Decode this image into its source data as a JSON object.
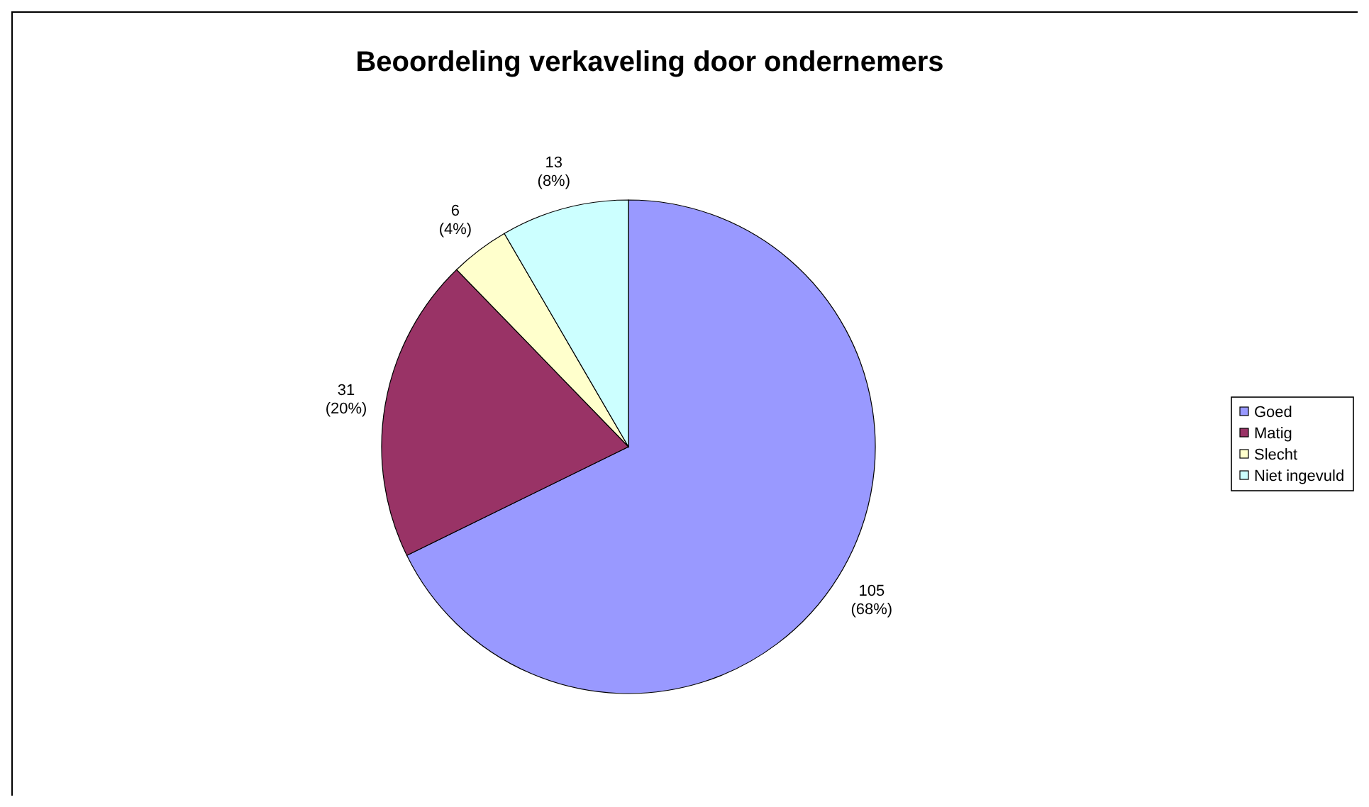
{
  "chart_data": {
    "type": "pie",
    "title": "Beoordeling verkaveling door ondernemers",
    "categories": [
      "Goed",
      "Matig",
      "Slecht",
      "Niet ingevuld"
    ],
    "values": [
      105,
      31,
      6,
      13
    ],
    "colors": [
      "#9999ff",
      "#993366",
      "#ffffcc",
      "#ccffff"
    ],
    "value_labels": [
      "105\n(68%)",
      "31\n(20%)",
      "6\n(4%)",
      "13\n(8%)"
    ],
    "legend": "right"
  }
}
